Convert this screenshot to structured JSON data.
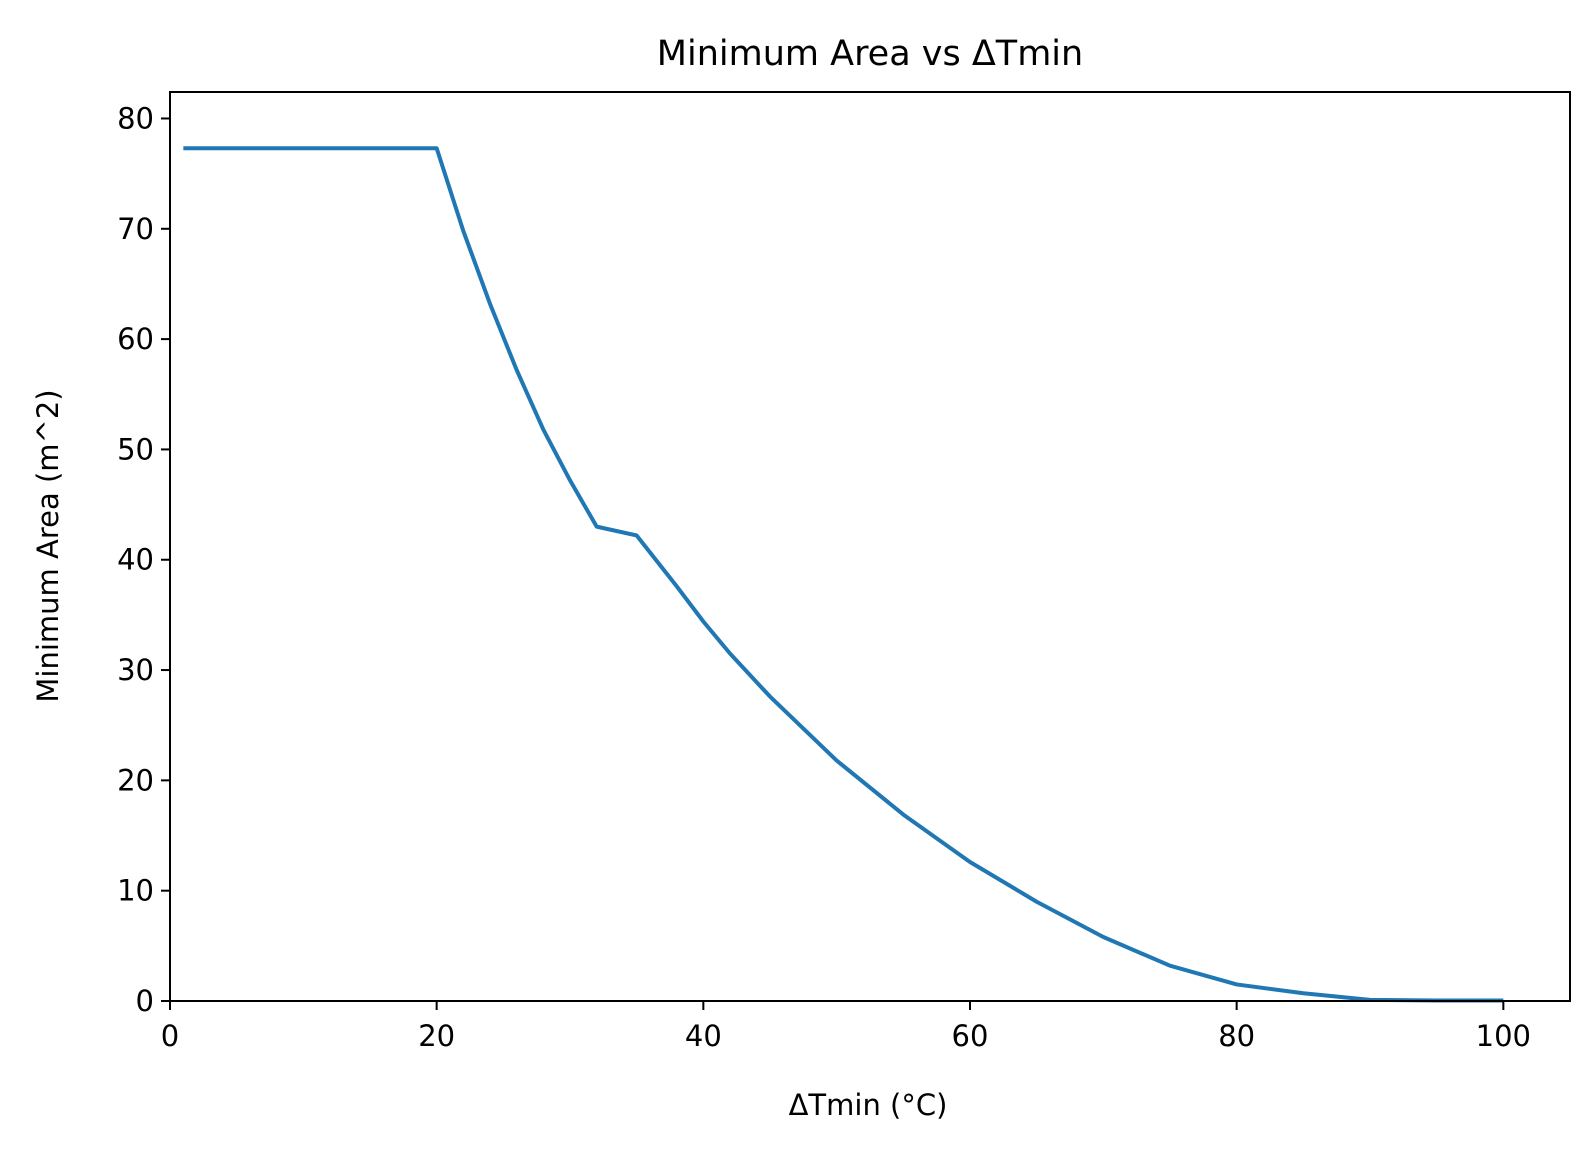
{
  "chart_data": {
    "type": "line",
    "title": "Minimum Area vs ΔTmin",
    "xlabel": "ΔTmin (°C)",
    "ylabel": "Minimum Area (m^2)",
    "xlim": [
      0,
      105
    ],
    "ylim": [
      0,
      82.4
    ],
    "xticks": [
      0,
      20,
      40,
      60,
      80,
      100
    ],
    "yticks": [
      0,
      10,
      20,
      30,
      40,
      50,
      60,
      70,
      80
    ],
    "grid": false,
    "legend": "none",
    "series": [
      {
        "color": "#1f77b4",
        "x": [
          1,
          5,
          10,
          15,
          20,
          22,
          24,
          26,
          28,
          30,
          32,
          35,
          38,
          40,
          42,
          45,
          50,
          55,
          60,
          65,
          70,
          75,
          80,
          85,
          90,
          95,
          100
        ],
        "y": [
          77.3,
          77.3,
          77.3,
          77.3,
          77.3,
          69.8,
          63.2,
          57.2,
          51.8,
          47.2,
          43.0,
          42.2,
          37.6,
          34.4,
          31.5,
          27.6,
          21.8,
          16.9,
          12.6,
          9.0,
          5.8,
          3.2,
          1.5,
          0.7,
          0.1,
          0.05,
          0.05
        ]
      }
    ]
  }
}
